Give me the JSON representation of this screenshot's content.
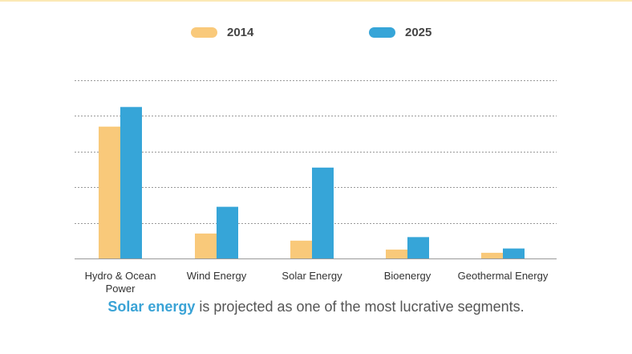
{
  "chart_data": {
    "type": "bar",
    "categories": [
      "Hydro & Ocean Power",
      "Wind Energy",
      "Solar Energy",
      "Bioenergy",
      "Geothermal Energy"
    ],
    "category_lines": [
      [
        "Hydro & Ocean",
        "Power"
      ],
      [
        "Wind Energy"
      ],
      [
        "Solar Energy"
      ],
      [
        "Bioenergy"
      ],
      [
        "Geothermal Energy"
      ]
    ],
    "series": [
      {
        "name": "2014",
        "values": [
          3.7,
          0.7,
          0.5,
          0.25,
          0.16
        ],
        "color": "#f9c97a"
      },
      {
        "name": "2025",
        "values": [
          4.25,
          1.45,
          2.55,
          0.6,
          0.28
        ],
        "color": "#36a5d8"
      }
    ],
    "ylim": [
      0,
      5
    ],
    "y_ticks": [
      0,
      1,
      2,
      3,
      4,
      5
    ],
    "y_tick_labels": "none",
    "grid": true,
    "grid_style": "dashed",
    "legend_position": "top",
    "title": "",
    "xlabel": "",
    "ylabel": ""
  },
  "caption": {
    "highlight": "Solar energy",
    "rest": " is projected as one of the most lucrative segments."
  },
  "colors": {
    "highlight": "#3aa3d6",
    "grid": "#9a9a9a",
    "axis": "#9a9a9a",
    "text": "#333333"
  }
}
